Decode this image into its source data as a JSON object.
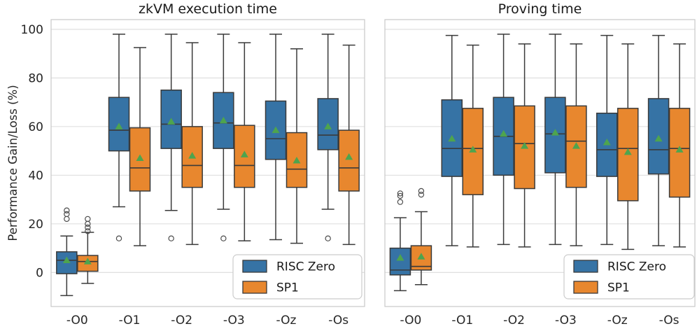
{
  "figure": {
    "ylabel": "Performance Gain/Loss (%)",
    "yticks": [
      0,
      20,
      40,
      60,
      80,
      100
    ],
    "ylim": [
      -14,
      104
    ],
    "colors": {
      "risc_zero": "#3673a5",
      "sp1": "#e8872e",
      "mean_marker": "#4ea44e",
      "box_edge": "#3a3a3a",
      "flier_edge": "#4d4d4d",
      "grid": "#dcdcdc",
      "spine": "#c8c8c8",
      "text": "#262626",
      "legend_border": "#cccccc"
    }
  },
  "chart_data": [
    {
      "type": "boxplot",
      "title": "zkVM execution time",
      "categories": [
        "-O0",
        "-O1",
        "-O2",
        "-O3",
        "-Oz",
        "-Os"
      ],
      "legend": {
        "position": "lower right",
        "entries": [
          "RISC Zero",
          "SP1"
        ]
      },
      "series": [
        {
          "name": "RISC Zero",
          "color_key": "risc_zero",
          "boxes": [
            {
              "whislo": -9.5,
              "q1": -0.5,
              "med": 5,
              "q3": 8.5,
              "whishi": 15,
              "mean": 5,
              "fliers": [
                22,
                24,
                25.5
              ]
            },
            {
              "whislo": 27,
              "q1": 50,
              "med": 58.5,
              "q3": 72,
              "whishi": 98,
              "mean": 60,
              "fliers": [
                14
              ]
            },
            {
              "whislo": 25.5,
              "q1": 51,
              "med": 61,
              "q3": 75,
              "whishi": 98,
              "mean": 62,
              "fliers": [
                14
              ]
            },
            {
              "whislo": 26,
              "q1": 51,
              "med": 61.5,
              "q3": 74,
              "whishi": 98,
              "mean": 62.5,
              "fliers": [
                14
              ]
            },
            {
              "whislo": 13.5,
              "q1": 46.5,
              "med": 55,
              "q3": 70.5,
              "whishi": 98,
              "mean": 58.5,
              "fliers": []
            },
            {
              "whislo": 26,
              "q1": 50.5,
              "med": 56.5,
              "q3": 71.5,
              "whishi": 98,
              "mean": 60,
              "fliers": [
                14
              ]
            }
          ]
        },
        {
          "name": "SP1",
          "color_key": "sp1",
          "boxes": [
            {
              "whislo": -4.5,
              "q1": 0.5,
              "med": 4.5,
              "q3": 7,
              "whishi": 16.5,
              "mean": 4.5,
              "fliers": [
                17,
                18.5,
                20,
                22
              ]
            },
            {
              "whislo": 11,
              "q1": 33.5,
              "med": 43,
              "q3": 59.5,
              "whishi": 92.5,
              "mean": 47,
              "fliers": []
            },
            {
              "whislo": 11.5,
              "q1": 35,
              "med": 44,
              "q3": 60,
              "whishi": 94.5,
              "mean": 48,
              "fliers": []
            },
            {
              "whislo": 13,
              "q1": 35,
              "med": 44,
              "q3": 60.5,
              "whishi": 94.5,
              "mean": 48.5,
              "fliers": []
            },
            {
              "whislo": 12,
              "q1": 35,
              "med": 42.5,
              "q3": 57.5,
              "whishi": 92,
              "mean": 46,
              "fliers": []
            },
            {
              "whislo": 11.5,
              "q1": 33.5,
              "med": 43,
              "q3": 58.5,
              "whishi": 93.5,
              "mean": 47.5,
              "fliers": []
            }
          ]
        }
      ]
    },
    {
      "type": "boxplot",
      "title": "Proving time",
      "categories": [
        "-O0",
        "-O1",
        "-O2",
        "-O3",
        "-Oz",
        "-Os"
      ],
      "legend": {
        "position": "lower right",
        "entries": [
          "RISC Zero",
          "SP1"
        ]
      },
      "series": [
        {
          "name": "RISC Zero",
          "color_key": "risc_zero",
          "boxes": [
            {
              "whislo": -7.5,
              "q1": -1,
              "med": 1,
              "q3": 10,
              "whishi": 22.5,
              "mean": 6,
              "fliers": [
                29,
                31.5,
                32.5
              ]
            },
            {
              "whislo": 11,
              "q1": 39.5,
              "med": 51,
              "q3": 71,
              "whishi": 97.5,
              "mean": 55,
              "fliers": []
            },
            {
              "whislo": 11.5,
              "q1": 40,
              "med": 56,
              "q3": 72,
              "whishi": 98,
              "mean": 57,
              "fliers": []
            },
            {
              "whislo": 11.5,
              "q1": 41,
              "med": 57,
              "q3": 72,
              "whishi": 98,
              "mean": 57.5,
              "fliers": []
            },
            {
              "whislo": 11.5,
              "q1": 39.5,
              "med": 50.5,
              "q3": 65.5,
              "whishi": 97.5,
              "mean": 53.5,
              "fliers": []
            },
            {
              "whislo": 11,
              "q1": 40.5,
              "med": 50.5,
              "q3": 71.5,
              "whishi": 97.5,
              "mean": 55,
              "fliers": []
            }
          ]
        },
        {
          "name": "SP1",
          "color_key": "sp1",
          "boxes": [
            {
              "whislo": -5,
              "q1": 1,
              "med": 2.5,
              "q3": 11,
              "whishi": 25,
              "mean": 6.5,
              "fliers": [
                32,
                33.5
              ]
            },
            {
              "whislo": 10.5,
              "q1": 32,
              "med": 51,
              "q3": 67.5,
              "whishi": 93.5,
              "mean": 50.5,
              "fliers": []
            },
            {
              "whislo": 10.5,
              "q1": 34.5,
              "med": 53,
              "q3": 68.5,
              "whishi": 94,
              "mean": 52,
              "fliers": []
            },
            {
              "whislo": 11,
              "q1": 35,
              "med": 54,
              "q3": 68.5,
              "whishi": 94,
              "mean": 52,
              "fliers": []
            },
            {
              "whislo": 9.5,
              "q1": 29.5,
              "med": 51,
              "q3": 67.5,
              "whishi": 94,
              "mean": 49.5,
              "fliers": []
            },
            {
              "whislo": 10.5,
              "q1": 31,
              "med": 51,
              "q3": 67.5,
              "whishi": 94,
              "mean": 50.5,
              "fliers": []
            }
          ]
        }
      ]
    }
  ]
}
